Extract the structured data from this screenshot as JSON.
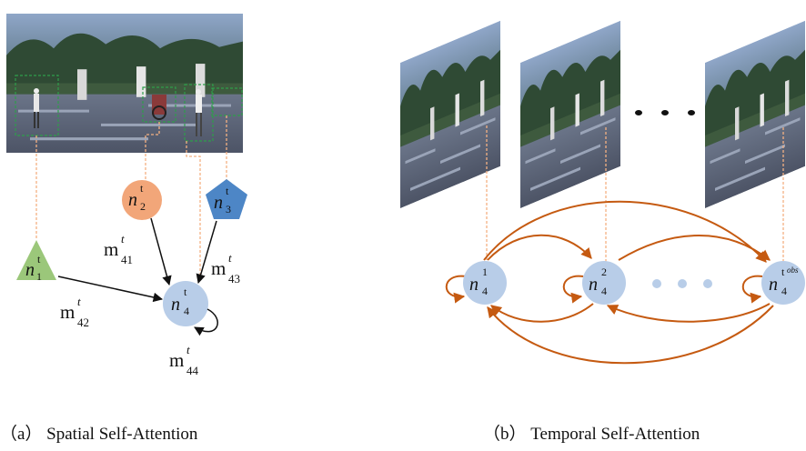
{
  "panel_a": {
    "caption": "（a） Spatial Self-Attention",
    "nodes": [
      {
        "base": "n",
        "sup": "t",
        "sub": "1",
        "shape": "triangle",
        "color": "#9bc77a"
      },
      {
        "base": "n",
        "sup": "t",
        "sub": "2",
        "shape": "circle",
        "color": "#f2a679"
      },
      {
        "base": "n",
        "sup": "t",
        "sub": "3",
        "shape": "pentagon",
        "color": "#4d86c6"
      },
      {
        "base": "n",
        "sup": "t",
        "sub": "4",
        "shape": "circle",
        "color": "#b8cde8"
      }
    ],
    "edges": [
      {
        "base": "m",
        "sup": "t",
        "sub": "41"
      },
      {
        "base": "m",
        "sup": "t",
        "sub": "42"
      },
      {
        "base": "m",
        "sup": "t",
        "sub": "43"
      },
      {
        "base": "m",
        "sup": "t",
        "sub": "44"
      }
    ]
  },
  "panel_b": {
    "caption": "（b） Temporal Self-Attention",
    "nodes": [
      {
        "base": "n",
        "sup": "1",
        "sub": "4"
      },
      {
        "base": "n",
        "sup": "2",
        "sub": "4"
      },
      {
        "base": "n",
        "sup": "t",
        "sup2": "obs",
        "sub": "4"
      }
    ],
    "ellipsis": "• • •",
    "colors": {
      "arrow": "#c55a11",
      "node": "#b8cde8",
      "dots": "#b8cde8",
      "guide": "#f4b183"
    }
  }
}
